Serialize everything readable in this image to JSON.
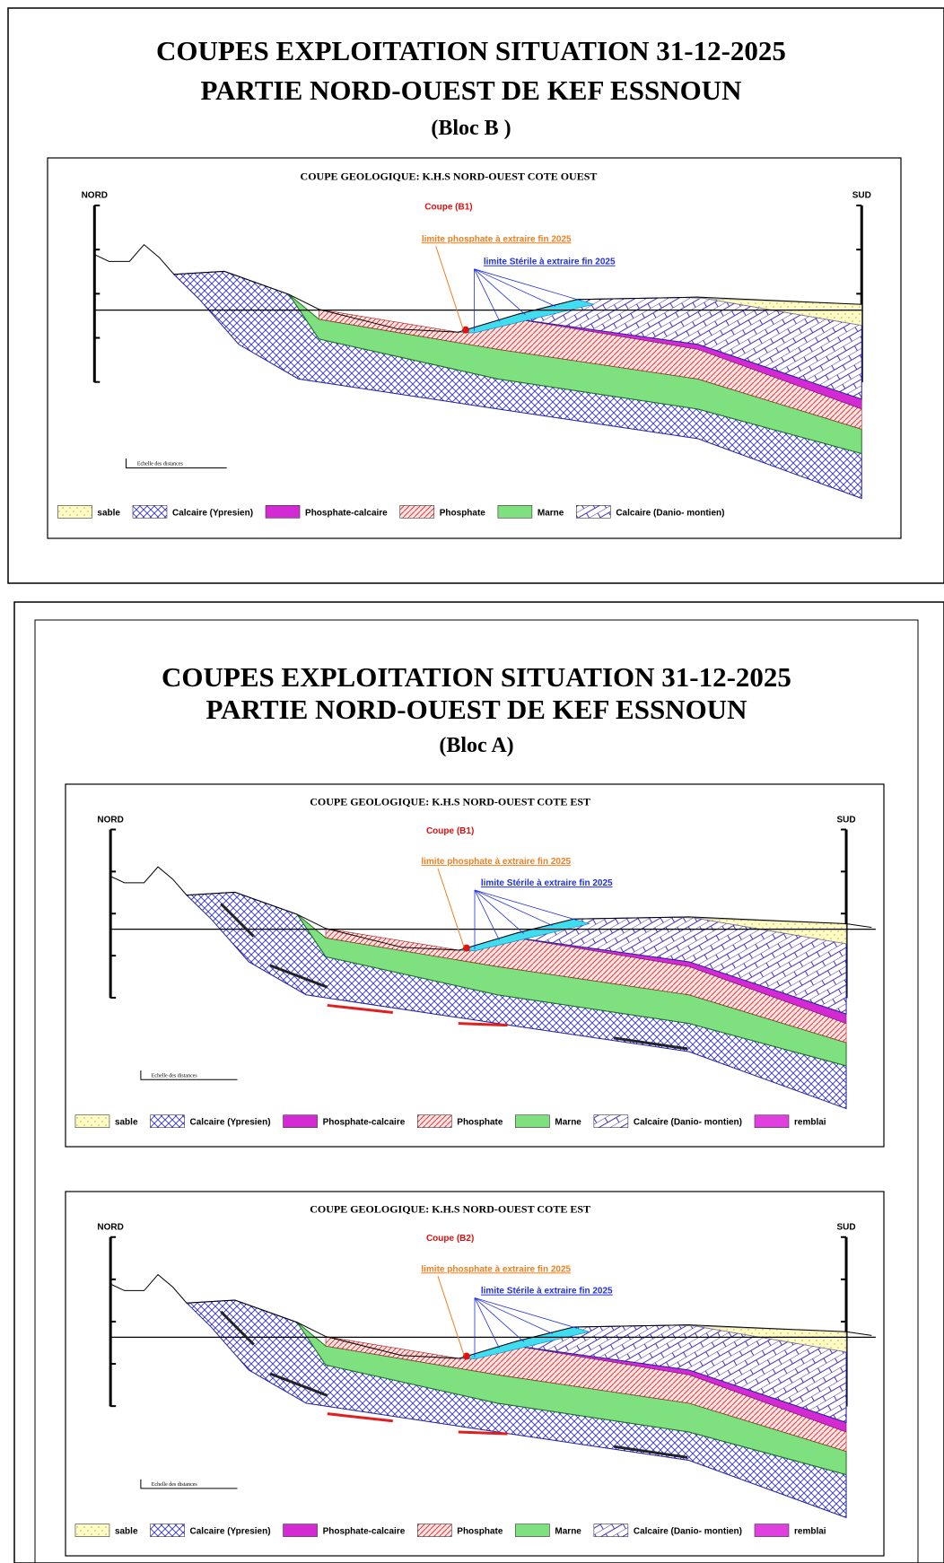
{
  "documents": [
    {
      "title": [
        "COUPES EXPLOITATION SITUATION 31-12-2025",
        "PARTIE NORD-OUEST DE KEF ESSNOUN"
      ],
      "subtitle": "(Bloc B )",
      "sections": [
        {
          "heading": "COUPE GEOLOGIQUE: K.H.S NORD-OUEST COTE OUEST",
          "north": "NORD",
          "south": "SUD",
          "cut": "Coupe (B1)",
          "limit_phosphate": "limite phosphate à extraire fin 2025",
          "limit_sterile": "limite Stérile à extraire fin 2025",
          "scale": "Echelle des distances",
          "legend": [
            "sable",
            "Calcaire (Ypresien)",
            "Phosphate-calcaire",
            "Phosphate",
            "Marne",
            "Calcaire (Danio- montien)"
          ]
        }
      ]
    },
    {
      "title": [
        "COUPES EXPLOITATION SITUATION 31-12-2025",
        "PARTIE NORD-OUEST DE KEF ESSNOUN"
      ],
      "subtitle": "(Bloc A)",
      "sections": [
        {
          "heading": "COUPE GEOLOGIQUE: K.H.S NORD-OUEST COTE EST",
          "north": "NORD",
          "south": "SUD",
          "cut": "Coupe (B1)",
          "limit_phosphate": "limite phosphate à extraire fin 2025",
          "limit_sterile": "limite Stérile à extraire fin 2025",
          "scale": "Echelle des distances",
          "legend": [
            "sable",
            "Calcaire (Ypresien)",
            "Phosphate-calcaire",
            "Phosphate",
            "Marne",
            "Calcaire (Danio- montien)",
            "remblai"
          ]
        },
        {
          "heading": "COUPE GEOLOGIQUE: K.H.S NORD-OUEST COTE EST",
          "north": "NORD",
          "south": "SUD",
          "cut": "Coupe (B2)",
          "limit_phosphate": "limite phosphate à extraire fin 2025",
          "limit_sterile": "limite Stérile à extraire fin 2025",
          "scale": "Echelle des distances",
          "legend": [
            "sable",
            "Calcaire (Ypresien)",
            "Phosphate-calcaire",
            "Phosphate",
            "Marne",
            "Calcaire (Danio- montien)",
            "remblai"
          ]
        }
      ]
    }
  ]
}
